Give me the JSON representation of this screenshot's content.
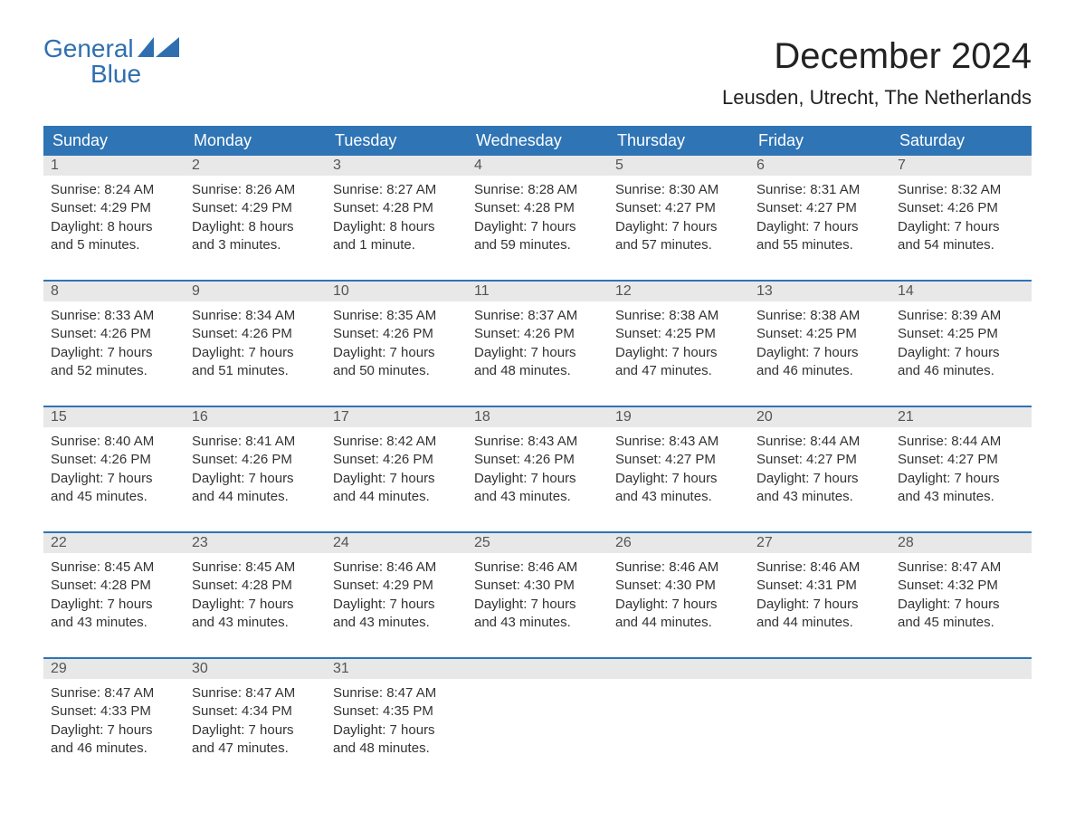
{
  "logo": {
    "text1": "General",
    "text2": "Blue",
    "accent_color": "#2f6fb0"
  },
  "title": "December 2024",
  "location": "Leusden, Utrecht, The Netherlands",
  "colors": {
    "header_bg": "#2f74b5",
    "header_text": "#ffffff",
    "num_bar_bg": "#e8e8e8",
    "num_bar_text": "#555555",
    "body_text": "#333333",
    "week_border": "#2f74b5",
    "background": "#ffffff"
  },
  "day_names": [
    "Sunday",
    "Monday",
    "Tuesday",
    "Wednesday",
    "Thursday",
    "Friday",
    "Saturday"
  ],
  "weeks": [
    [
      {
        "num": "1",
        "sunrise": "Sunrise: 8:24 AM",
        "sunset": "Sunset: 4:29 PM",
        "daylight1": "Daylight: 8 hours",
        "daylight2": "and 5 minutes."
      },
      {
        "num": "2",
        "sunrise": "Sunrise: 8:26 AM",
        "sunset": "Sunset: 4:29 PM",
        "daylight1": "Daylight: 8 hours",
        "daylight2": "and 3 minutes."
      },
      {
        "num": "3",
        "sunrise": "Sunrise: 8:27 AM",
        "sunset": "Sunset: 4:28 PM",
        "daylight1": "Daylight: 8 hours",
        "daylight2": "and 1 minute."
      },
      {
        "num": "4",
        "sunrise": "Sunrise: 8:28 AM",
        "sunset": "Sunset: 4:28 PM",
        "daylight1": "Daylight: 7 hours",
        "daylight2": "and 59 minutes."
      },
      {
        "num": "5",
        "sunrise": "Sunrise: 8:30 AM",
        "sunset": "Sunset: 4:27 PM",
        "daylight1": "Daylight: 7 hours",
        "daylight2": "and 57 minutes."
      },
      {
        "num": "6",
        "sunrise": "Sunrise: 8:31 AM",
        "sunset": "Sunset: 4:27 PM",
        "daylight1": "Daylight: 7 hours",
        "daylight2": "and 55 minutes."
      },
      {
        "num": "7",
        "sunrise": "Sunrise: 8:32 AM",
        "sunset": "Sunset: 4:26 PM",
        "daylight1": "Daylight: 7 hours",
        "daylight2": "and 54 minutes."
      }
    ],
    [
      {
        "num": "8",
        "sunrise": "Sunrise: 8:33 AM",
        "sunset": "Sunset: 4:26 PM",
        "daylight1": "Daylight: 7 hours",
        "daylight2": "and 52 minutes."
      },
      {
        "num": "9",
        "sunrise": "Sunrise: 8:34 AM",
        "sunset": "Sunset: 4:26 PM",
        "daylight1": "Daylight: 7 hours",
        "daylight2": "and 51 minutes."
      },
      {
        "num": "10",
        "sunrise": "Sunrise: 8:35 AM",
        "sunset": "Sunset: 4:26 PM",
        "daylight1": "Daylight: 7 hours",
        "daylight2": "and 50 minutes."
      },
      {
        "num": "11",
        "sunrise": "Sunrise: 8:37 AM",
        "sunset": "Sunset: 4:26 PM",
        "daylight1": "Daylight: 7 hours",
        "daylight2": "and 48 minutes."
      },
      {
        "num": "12",
        "sunrise": "Sunrise: 8:38 AM",
        "sunset": "Sunset: 4:25 PM",
        "daylight1": "Daylight: 7 hours",
        "daylight2": "and 47 minutes."
      },
      {
        "num": "13",
        "sunrise": "Sunrise: 8:38 AM",
        "sunset": "Sunset: 4:25 PM",
        "daylight1": "Daylight: 7 hours",
        "daylight2": "and 46 minutes."
      },
      {
        "num": "14",
        "sunrise": "Sunrise: 8:39 AM",
        "sunset": "Sunset: 4:25 PM",
        "daylight1": "Daylight: 7 hours",
        "daylight2": "and 46 minutes."
      }
    ],
    [
      {
        "num": "15",
        "sunrise": "Sunrise: 8:40 AM",
        "sunset": "Sunset: 4:26 PM",
        "daylight1": "Daylight: 7 hours",
        "daylight2": "and 45 minutes."
      },
      {
        "num": "16",
        "sunrise": "Sunrise: 8:41 AM",
        "sunset": "Sunset: 4:26 PM",
        "daylight1": "Daylight: 7 hours",
        "daylight2": "and 44 minutes."
      },
      {
        "num": "17",
        "sunrise": "Sunrise: 8:42 AM",
        "sunset": "Sunset: 4:26 PM",
        "daylight1": "Daylight: 7 hours",
        "daylight2": "and 44 minutes."
      },
      {
        "num": "18",
        "sunrise": "Sunrise: 8:43 AM",
        "sunset": "Sunset: 4:26 PM",
        "daylight1": "Daylight: 7 hours",
        "daylight2": "and 43 minutes."
      },
      {
        "num": "19",
        "sunrise": "Sunrise: 8:43 AM",
        "sunset": "Sunset: 4:27 PM",
        "daylight1": "Daylight: 7 hours",
        "daylight2": "and 43 minutes."
      },
      {
        "num": "20",
        "sunrise": "Sunrise: 8:44 AM",
        "sunset": "Sunset: 4:27 PM",
        "daylight1": "Daylight: 7 hours",
        "daylight2": "and 43 minutes."
      },
      {
        "num": "21",
        "sunrise": "Sunrise: 8:44 AM",
        "sunset": "Sunset: 4:27 PM",
        "daylight1": "Daylight: 7 hours",
        "daylight2": "and 43 minutes."
      }
    ],
    [
      {
        "num": "22",
        "sunrise": "Sunrise: 8:45 AM",
        "sunset": "Sunset: 4:28 PM",
        "daylight1": "Daylight: 7 hours",
        "daylight2": "and 43 minutes."
      },
      {
        "num": "23",
        "sunrise": "Sunrise: 8:45 AM",
        "sunset": "Sunset: 4:28 PM",
        "daylight1": "Daylight: 7 hours",
        "daylight2": "and 43 minutes."
      },
      {
        "num": "24",
        "sunrise": "Sunrise: 8:46 AM",
        "sunset": "Sunset: 4:29 PM",
        "daylight1": "Daylight: 7 hours",
        "daylight2": "and 43 minutes."
      },
      {
        "num": "25",
        "sunrise": "Sunrise: 8:46 AM",
        "sunset": "Sunset: 4:30 PM",
        "daylight1": "Daylight: 7 hours",
        "daylight2": "and 43 minutes."
      },
      {
        "num": "26",
        "sunrise": "Sunrise: 8:46 AM",
        "sunset": "Sunset: 4:30 PM",
        "daylight1": "Daylight: 7 hours",
        "daylight2": "and 44 minutes."
      },
      {
        "num": "27",
        "sunrise": "Sunrise: 8:46 AM",
        "sunset": "Sunset: 4:31 PM",
        "daylight1": "Daylight: 7 hours",
        "daylight2": "and 44 minutes."
      },
      {
        "num": "28",
        "sunrise": "Sunrise: 8:47 AM",
        "sunset": "Sunset: 4:32 PM",
        "daylight1": "Daylight: 7 hours",
        "daylight2": "and 45 minutes."
      }
    ],
    [
      {
        "num": "29",
        "sunrise": "Sunrise: 8:47 AM",
        "sunset": "Sunset: 4:33 PM",
        "daylight1": "Daylight: 7 hours",
        "daylight2": "and 46 minutes."
      },
      {
        "num": "30",
        "sunrise": "Sunrise: 8:47 AM",
        "sunset": "Sunset: 4:34 PM",
        "daylight1": "Daylight: 7 hours",
        "daylight2": "and 47 minutes."
      },
      {
        "num": "31",
        "sunrise": "Sunrise: 8:47 AM",
        "sunset": "Sunset: 4:35 PM",
        "daylight1": "Daylight: 7 hours",
        "daylight2": "and 48 minutes."
      },
      null,
      null,
      null,
      null
    ]
  ]
}
